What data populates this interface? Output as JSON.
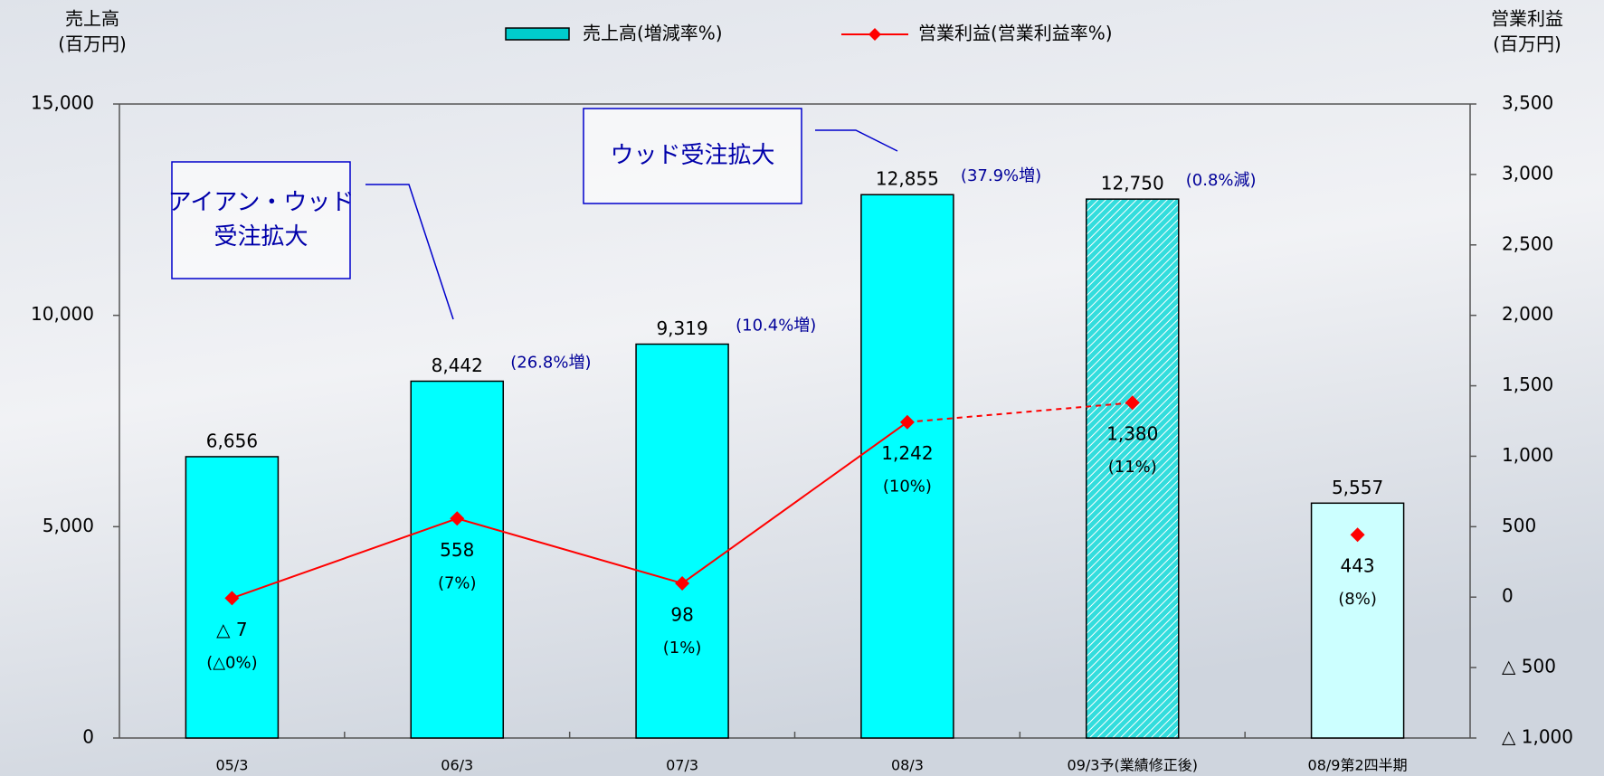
{
  "chart_data": {
    "type": "bar_line",
    "y_label": "売上高",
    "y_unit": "(百万円)",
    "y2_label": "営業利益",
    "y2_unit": "(百万円)",
    "categories": [
      "05/3",
      "06/3",
      "07/3",
      "08/3",
      "09/3予(業績修正後)",
      "08/9第2四半期"
    ],
    "ylim": [
      0,
      15000
    ],
    "yticks": [
      0,
      {
        "value": 5000,
        "label": "5,000"
      },
      {
        "value": 10000,
        "label": "10,000"
      },
      {
        "value": 15000,
        "label": "15,000"
      }
    ],
    "y2lim": [
      -1000,
      3500
    ],
    "y2ticks": [
      {
        "value": -1000,
        "label": "△ 1,000"
      },
      {
        "value": -500,
        "label": "△ 500"
      },
      0,
      500,
      {
        "value": 1000,
        "label": "1,000"
      },
      {
        "value": 1500,
        "label": "1,500"
      },
      {
        "value": 2000,
        "label": "2,000"
      },
      {
        "value": 2500,
        "label": "2,500"
      },
      {
        "value": 3000,
        "label": "3,000"
      },
      {
        "value": 3500,
        "label": "3,500"
      }
    ],
    "series": [
      {
        "name": "売上高(増減率%)",
        "type": "bar",
        "color": "#00ffff",
        "values": [
          6656,
          8442,
          9319,
          12855,
          12750,
          5557
        ],
        "value_labels": [
          "6,656",
          "8,442",
          "9,319",
          "12,855",
          "12,750",
          "5,557"
        ],
        "growth_labels": [
          null,
          "(26.8%増)",
          "(10.4%増)",
          "(37.9%増)",
          "(0.8%減)",
          null
        ],
        "bar_colors": [
          "#00ffff",
          "#00ffff",
          "#00ffff",
          "#00ffff",
          "#33dddd",
          "#ccffff"
        ],
        "hatched": [
          false,
          false,
          false,
          false,
          true,
          false
        ]
      },
      {
        "name": "営業利益(営業利益率%)",
        "type": "line",
        "axis": "y2",
        "color": "#ff0000",
        "values": [
          -7,
          558,
          98,
          1242,
          1380,
          443
        ],
        "value_labels": [
          "△ 7",
          "558",
          "98",
          "1,242",
          "1,380",
          "443"
        ],
        "margin_labels": [
          "(△0%)",
          "(7%)",
          "(1%)",
          "(10%)",
          "(11%)",
          "(8%)"
        ],
        "segment_styles": [
          "solid",
          "solid",
          "solid",
          "dashed",
          "none"
        ]
      }
    ],
    "annotations": [
      {
        "lines": [
          "アイアン・ウッド",
          "受注拡大"
        ]
      },
      {
        "lines": [
          "ウッド受注拡大"
        ]
      }
    ]
  }
}
